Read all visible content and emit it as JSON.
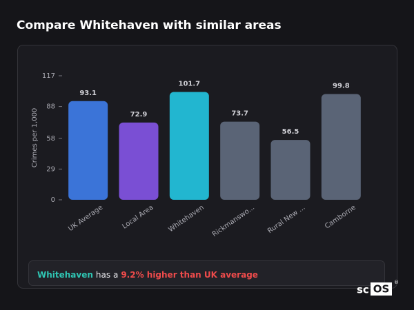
{
  "chart_data": {
    "type": "bar",
    "title": "Compare Whitehaven with similar areas",
    "y_label": "Crimes per 1,000",
    "categories": [
      "UK Average",
      "Local Area",
      "Whitehaven",
      "Rickmanswo...",
      "Rural New ...",
      "Camborne"
    ],
    "values": [
      93.1,
      72.9,
      101.7,
      73.7,
      56.5,
      99.8
    ],
    "colors": [
      "#3b74d8",
      "#7a4fd4",
      "#22b6d0",
      "#5a6476",
      "#5a6476",
      "#5a6476"
    ],
    "ylim": [
      0,
      117
    ],
    "yticks": [
      0,
      29,
      58,
      88,
      117
    ]
  },
  "summary": {
    "area": "Whitehaven",
    "middle": "has a",
    "comparison": "9.2% higher than UK average"
  },
  "logo": {
    "prefix": "sc",
    "box": "OS",
    "mark": "®"
  }
}
